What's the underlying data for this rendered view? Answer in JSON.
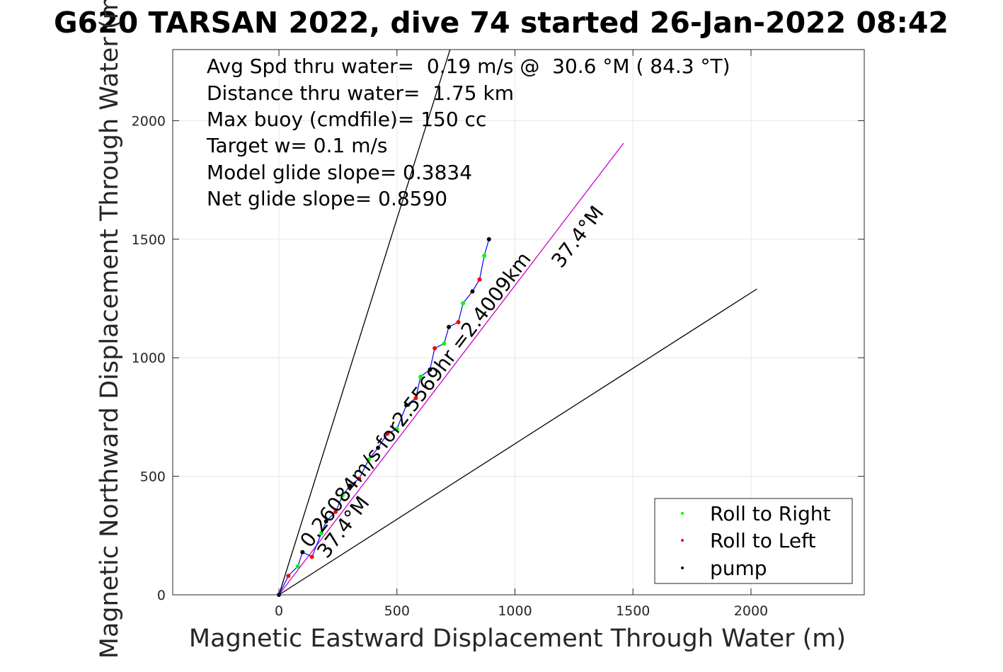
{
  "chart_data": {
    "type": "scatter",
    "title": "G620 TARSAN 2022, dive 74 started 26-Jan-2022 08:42",
    "xlabel": "Magnetic Eastward Displacement Through Water (m)",
    "ylabel": "Magnetic Northward Displacement Through Water (m)",
    "xlim": [
      -450,
      2480
    ],
    "ylim": [
      0,
      2300
    ],
    "xticks": [
      0,
      500,
      1000,
      1500,
      2000
    ],
    "yticks": [
      0,
      500,
      1000,
      1500,
      2000
    ],
    "grid": true,
    "legend_position": "bottom-right",
    "legend": [
      {
        "label": "Roll to Right",
        "color": "#00ff00"
      },
      {
        "label": "Roll to Left",
        "color": "#ff0000"
      },
      {
        "label": "pump",
        "color": "#000000"
      }
    ],
    "info_lines": [
      "Avg Spd thru water=  0.19 m/s @  30.6 °M ( 84.3 °T)",
      "Distance thru water=  1.75 km",
      "Max buoy (cmdfile)= 150 cc",
      "Target w= 0.1 m/s",
      "Model glide slope= 0.3834",
      "Net glide slope= 0.8590"
    ],
    "annotations": [
      "0.26084m/s for2.5569hr =2.4009km",
      "37.4°M",
      "37.4°M"
    ],
    "reference_lines": [
      {
        "x": [
          0,
          725
        ],
        "y": [
          0,
          2300
        ],
        "color": "#000000"
      },
      {
        "x": [
          0,
          1460
        ],
        "y": [
          0,
          1905
        ],
        "color": "#cc00cc"
      },
      {
        "x": [
          0,
          2025
        ],
        "y": [
          0,
          1290
        ],
        "color": "#000000"
      }
    ],
    "series": [
      {
        "name": "track",
        "color": "#0000ff",
        "x": [
          0,
          40,
          80,
          100,
          140,
          180,
          200,
          240,
          270,
          300,
          340,
          380,
          420,
          460,
          500,
          540,
          580,
          600,
          640,
          660,
          700,
          720,
          760,
          780,
          820,
          850,
          870,
          890
        ],
        "y": [
          0,
          80,
          120,
          180,
          160,
          260,
          310,
          350,
          420,
          460,
          490,
          570,
          620,
          680,
          700,
          800,
          830,
          920,
          950,
          1040,
          1060,
          1130,
          1150,
          1230,
          1280,
          1330,
          1430,
          1500
        ]
      }
    ]
  }
}
